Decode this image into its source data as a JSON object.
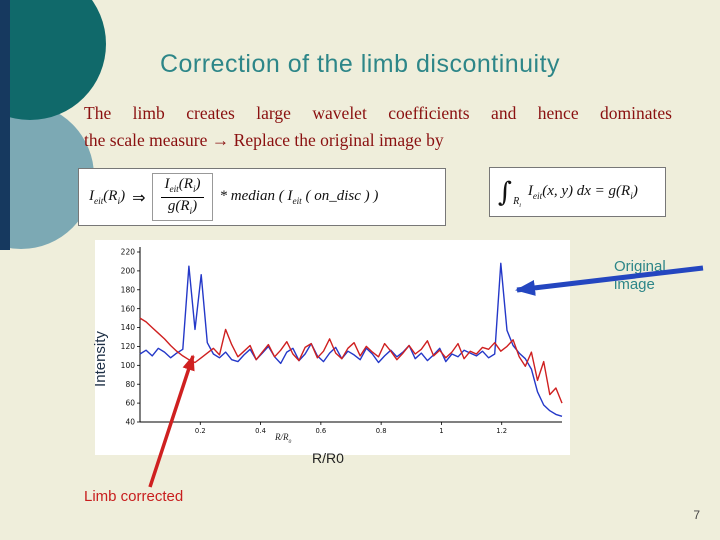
{
  "slide": {
    "title": "Correction of the limb discontinuity",
    "body_line1": "The limb creates large wavelet coefficients and hence dominates",
    "body_line2": "the scale measure → Replace the original image by",
    "page_number": "7"
  },
  "formulas": {
    "f1_lhs": "I_{eit}(R_{i})",
    "f1_arrow": "⇒",
    "f1_num": "I_{eit}(R_{i})",
    "f1_den": "g(R_{i})",
    "f1_rest": "* median ( I_{eit} ( on_disc ) )",
    "f2_integral": "∫",
    "f2_int_sub": "R_{i}",
    "f2_body": "I_{eit}(x, y) dx = g(R_{i})"
  },
  "labels": {
    "original_image": "Original image",
    "limb_corrected": "Limb corrected",
    "r_over_r0": "R/R0",
    "ylabel": "Intensity",
    "xlabel_small": "R/R_{0}"
  },
  "colors": {
    "background": "#efeedb",
    "title_teal": "#2d8688",
    "body_maroon": "#8a1010",
    "annotation_red": "#c81e1e",
    "annotation_blue": "#2446c0",
    "circle_dark_teal": "#10696a",
    "circle_light_blue": "#7ca9b4",
    "edge_bar_navy": "#16395f"
  },
  "chart_data": {
    "type": "line",
    "title": "",
    "xlabel": "R/R0",
    "ylabel": "Intensity",
    "xlim": [
      0,
      1.4
    ],
    "ylim": [
      40,
      220
    ],
    "yticks": [
      40,
      60,
      80,
      100,
      120,
      140,
      160,
      180,
      200,
      220
    ],
    "xticks": [
      0.2,
      0.4,
      0.6,
      0.8,
      1,
      1.2
    ],
    "grid": false,
    "legend_position": "none (labels are slide annotations with arrows)",
    "series": [
      {
        "name": "Original image",
        "color": "#2438c8",
        "values": [
          112,
          116,
          110,
          118,
          114,
          108,
          113,
          117,
          205,
          138,
          196,
          124,
          112,
          108,
          114,
          106,
          104,
          111,
          117,
          106,
          113,
          120,
          109,
          102,
          114,
          118,
          105,
          112,
          123,
          110,
          104,
          113,
          119,
          107,
          115,
          111,
          106,
          118,
          112,
          103,
          110,
          116,
          109,
          114,
          121,
          107,
          113,
          105,
          111,
          118,
          104,
          112,
          109,
          116,
          113,
          110,
          115,
          108,
          112,
          208,
          137,
          121,
          113,
          107,
          96,
          72,
          58,
          52,
          48,
          46
        ]
      },
      {
        "name": "Limb corrected",
        "color": "#cf2020",
        "values": [
          150,
          146,
          140,
          134,
          128,
          121,
          115,
          110,
          106,
          103,
          108,
          113,
          118,
          111,
          138,
          122,
          109,
          115,
          121,
          106,
          114,
          122,
          109,
          116,
          125,
          112,
          105,
          119,
          123,
          108,
          115,
          128,
          113,
          107,
          118,
          124,
          110,
          120,
          114,
          109,
          123,
          115,
          106,
          113,
          121,
          112,
          117,
          126,
          110,
          116,
          108,
          114,
          123,
          107,
          115,
          112,
          119,
          117,
          124,
          115,
          120,
          127,
          109,
          99,
          114,
          84,
          104,
          69,
          76,
          60
        ]
      }
    ]
  }
}
